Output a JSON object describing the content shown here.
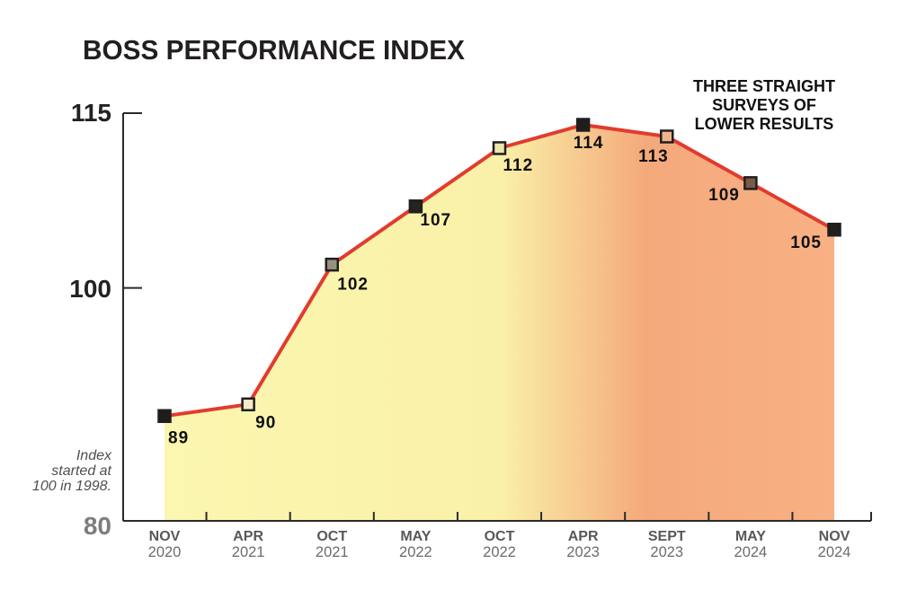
{
  "title": "BOSS PERFORMANCE INDEX",
  "annotation": {
    "line1": "THREE STRAIGHT",
    "line2": "SURVEYS OF",
    "line3": "LOWER RESULTS"
  },
  "index_note": {
    "line1": "Index",
    "line2": "started at",
    "line3": "100 in 1998."
  },
  "y_axis": {
    "tick_115": "115",
    "tick_100": "100",
    "tick_80": "80"
  },
  "chart_data": {
    "type": "area",
    "title": "BOSS PERFORMANCE INDEX",
    "categories": [
      {
        "month": "NOV",
        "year": "2020"
      },
      {
        "month": "APR",
        "year": "2021"
      },
      {
        "month": "OCT",
        "year": "2021"
      },
      {
        "month": "MAY",
        "year": "2022"
      },
      {
        "month": "OCT",
        "year": "2022"
      },
      {
        "month": "APR",
        "year": "2023"
      },
      {
        "month": "SEPT",
        "year": "2023"
      },
      {
        "month": "MAY",
        "year": "2024"
      },
      {
        "month": "NOV",
        "year": "2024"
      }
    ],
    "values": [
      89,
      90,
      102,
      107,
      112,
      114,
      113,
      109,
      105
    ],
    "ylim": [
      80,
      115
    ],
    "yticks": [
      80,
      100,
      115
    ],
    "annotation": "THREE STRAIGHT SURVEYS OF LOWER RESULTS",
    "note": "Index started at 100 in 1998.",
    "legend": null,
    "grid": false,
    "colors": {
      "line": "#e23b2e",
      "area_left_yellow": "#fbf6b0",
      "area_right_orange": "#f8b184",
      "axis": "#2a2a2a",
      "data_label": "#0f0f0f",
      "tick_label": "#57585a",
      "tick_label_muted": "#6b6c6e"
    }
  }
}
